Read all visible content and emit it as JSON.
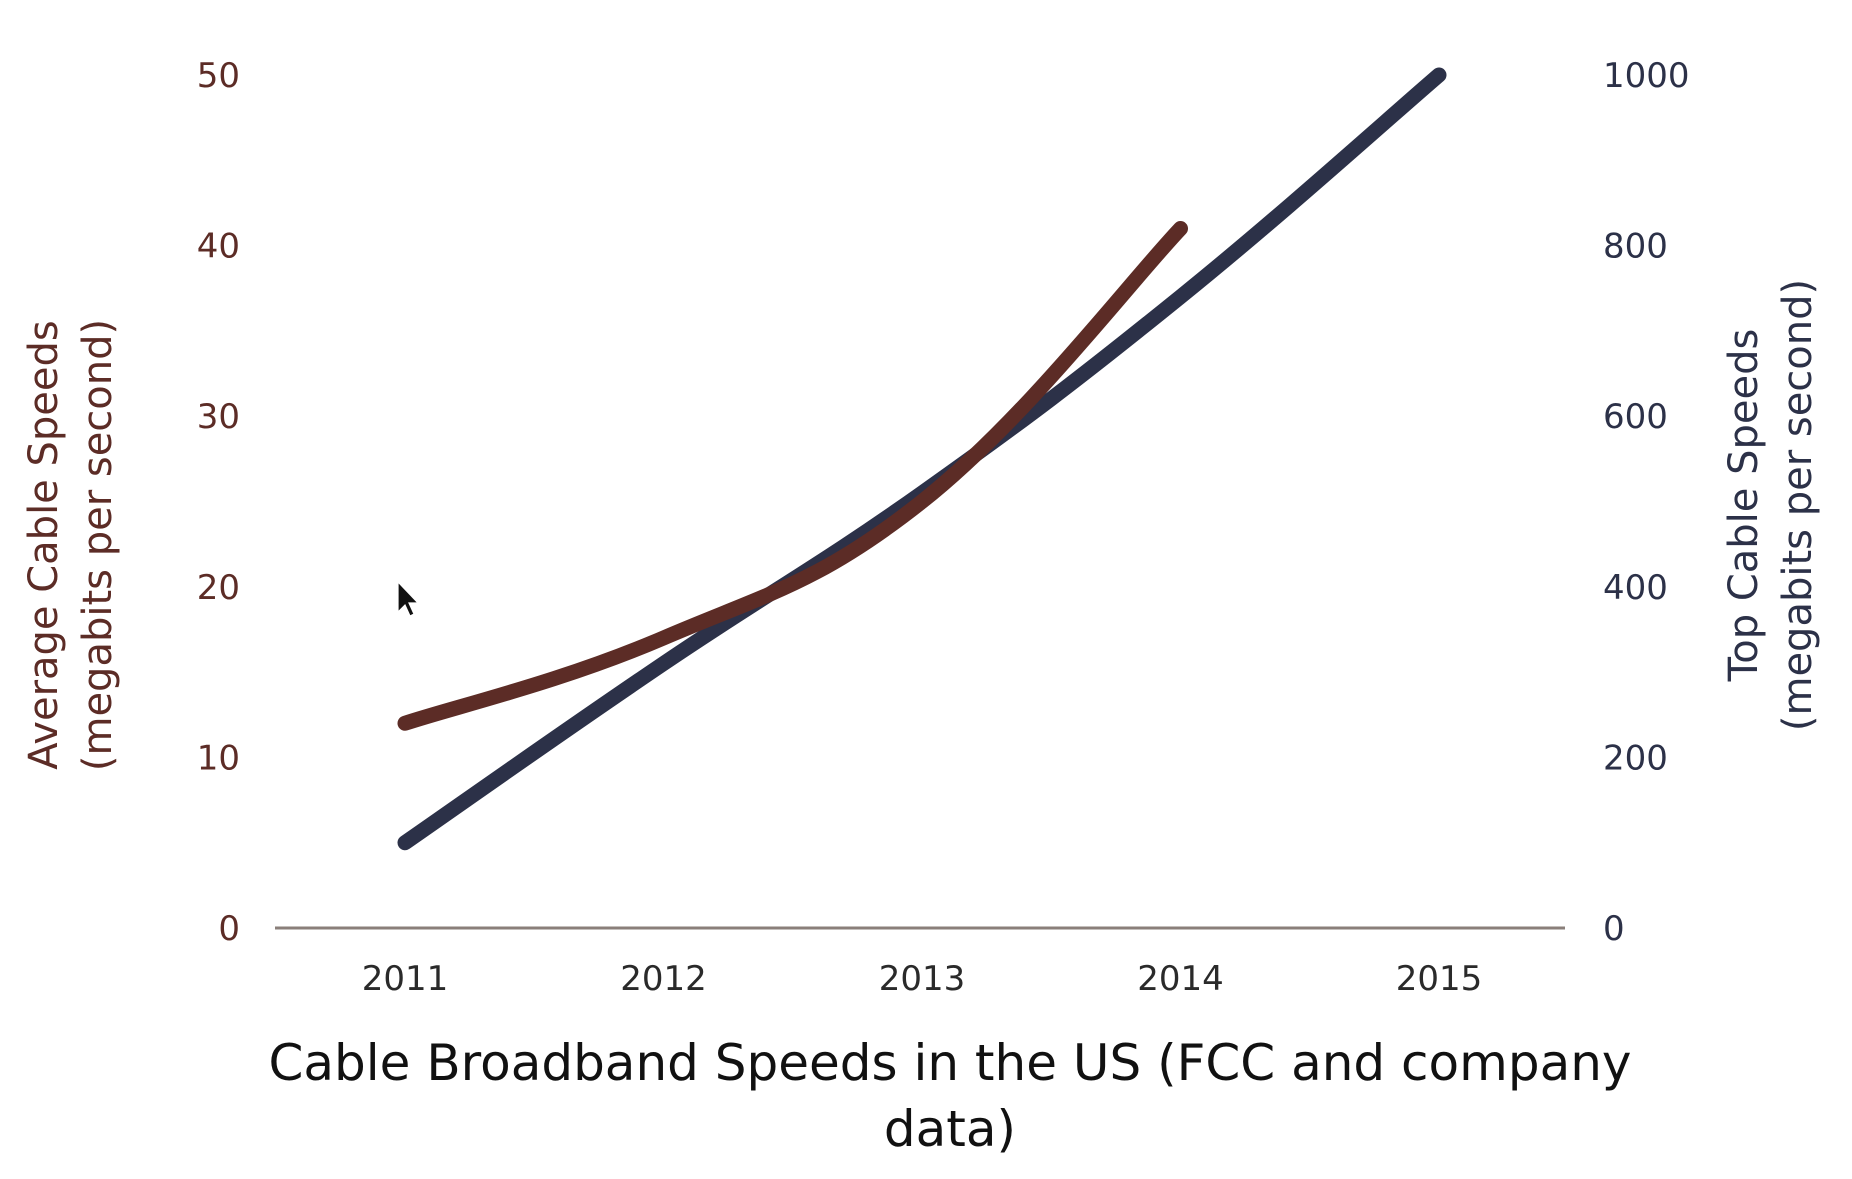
{
  "chart_data": {
    "type": "line",
    "title_lines": [
      "Cable Broadband Speeds in the US (FCC and company",
      "data)"
    ],
    "x": [
      2011,
      2012,
      2013,
      2014,
      2015
    ],
    "x_tick_labels": [
      "2011",
      "2012",
      "2013",
      "2014",
      "2015"
    ],
    "left_axis": {
      "label_lines": [
        "Average Cable Speeds",
        "(megabits per second)"
      ],
      "ylim": [
        0,
        50
      ],
      "ticks": [
        "0",
        "10",
        "20",
        "30",
        "40",
        "50"
      ],
      "color": "#5c2c26"
    },
    "right_axis": {
      "label_lines": [
        "Top Cable Speeds",
        "(megabits per second)"
      ],
      "ylim": [
        0,
        1000
      ],
      "ticks": [
        "0",
        "200",
        "400",
        "600",
        "800",
        "1000"
      ],
      "color": "#2c3148"
    },
    "series": [
      {
        "axis": "left",
        "color": "#5c2c26",
        "x": [
          2011,
          2012,
          2013,
          2014
        ],
        "values": [
          12,
          17,
          25,
          41
        ]
      },
      {
        "axis": "right",
        "color": "#2c3148",
        "x": [
          2011,
          2012,
          2013,
          2014,
          2015
        ],
        "values": [
          100,
          310,
          510,
          740,
          1000
        ]
      }
    ],
    "grid": false,
    "legend": "none"
  }
}
